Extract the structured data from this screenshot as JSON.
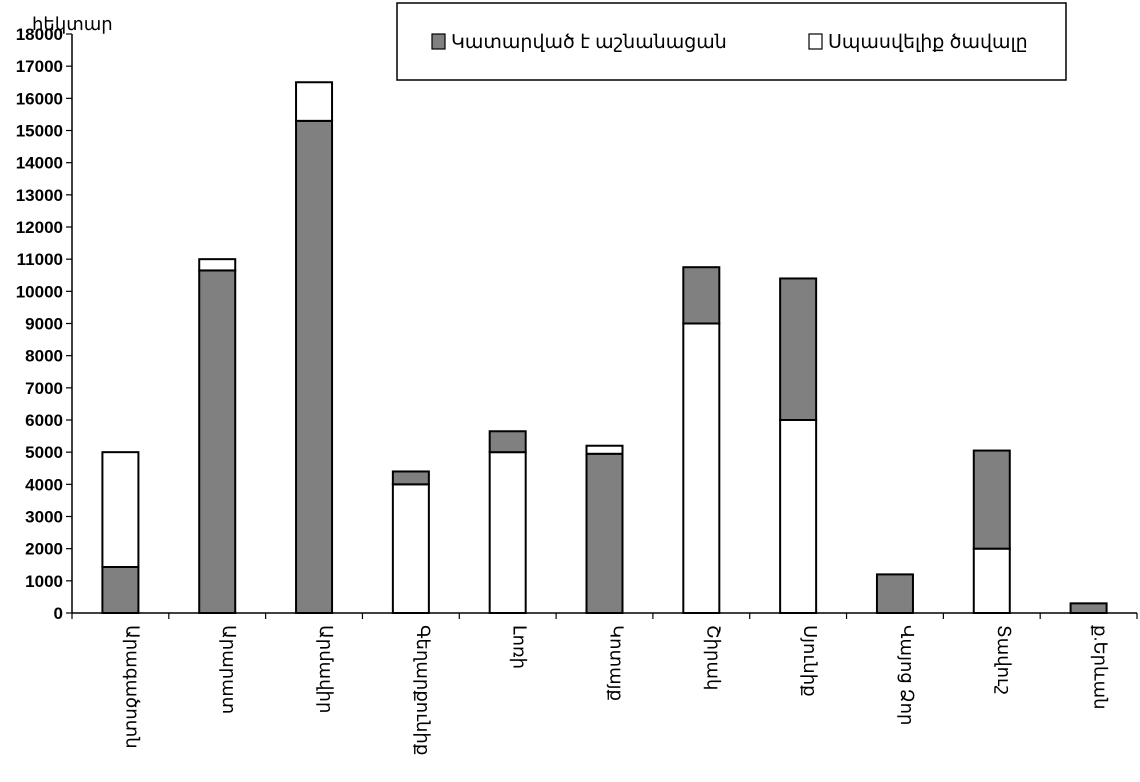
{
  "chart_data": {
    "type": "bar",
    "stacked": true,
    "ylabel": "հեկտար",
    "ylim": [
      0,
      18000
    ],
    "yticks": [
      0,
      1000,
      2000,
      3000,
      4000,
      5000,
      6000,
      7000,
      8000,
      9000,
      10000,
      11000,
      12000,
      13000,
      14000,
      15000,
      16000,
      17000,
      18000
    ],
    "grid": false,
    "legend_position": "top",
    "categories": [
      "Արագածոտն",
      "Արարատ",
      "Արմավիր",
      "Գեղարքունիք",
      "Լոռի",
      "Կոտայք",
      "Շիրակ",
      "Սյունիք",
      "Վայոց Ձոր",
      "Տավուշ",
      "ք.Երևան"
    ],
    "series": [
      {
        "name": "Կատարված է աշնանացան",
        "color": "#808080",
        "values": [
          1430,
          10650,
          15300,
          400,
          650,
          4950,
          1750,
          4400,
          1200,
          3050,
          300
        ]
      },
      {
        "name": "Սպասվելիք ծավալը",
        "color": "#ffffff",
        "values": [
          3570,
          350,
          1200,
          4000,
          5000,
          250,
          9000,
          6000,
          0,
          2000,
          0
        ]
      }
    ],
    "stack_order": [
      [
        "Կատարված է աշնանացան",
        "Սպասվելիք ծավալը"
      ],
      [
        "Կատարված է աշնանացան",
        "Սպասվելիք ծավալը"
      ],
      [
        "Կատարված է աշնանացան",
        "Սպասվելիք ծավալը"
      ],
      [
        "Սպասվելիք ծավալը",
        "Կատարված է աշնանացան"
      ],
      [
        "Սպասվելիք ծավալը",
        "Կատարված է աշնանացան"
      ],
      [
        "Կատարված է աշնանացան",
        "Սպասվելիք ծավալը"
      ],
      [
        "Սպասվելիք ծավալը",
        "Կատարված է աշնանացան"
      ],
      [
        "Սպասվելիք ծավալը",
        "Կատարված է աշնանացան"
      ],
      [
        "Կատարված է աշնանացան",
        "Սպասվելիք ծավալը"
      ],
      [
        "Սպասվելիք ծավալը",
        "Կատարված է աշնանացան"
      ],
      [
        "Կատարված է աշնանացան",
        "Սպասվելիք ծավալը"
      ]
    ]
  }
}
